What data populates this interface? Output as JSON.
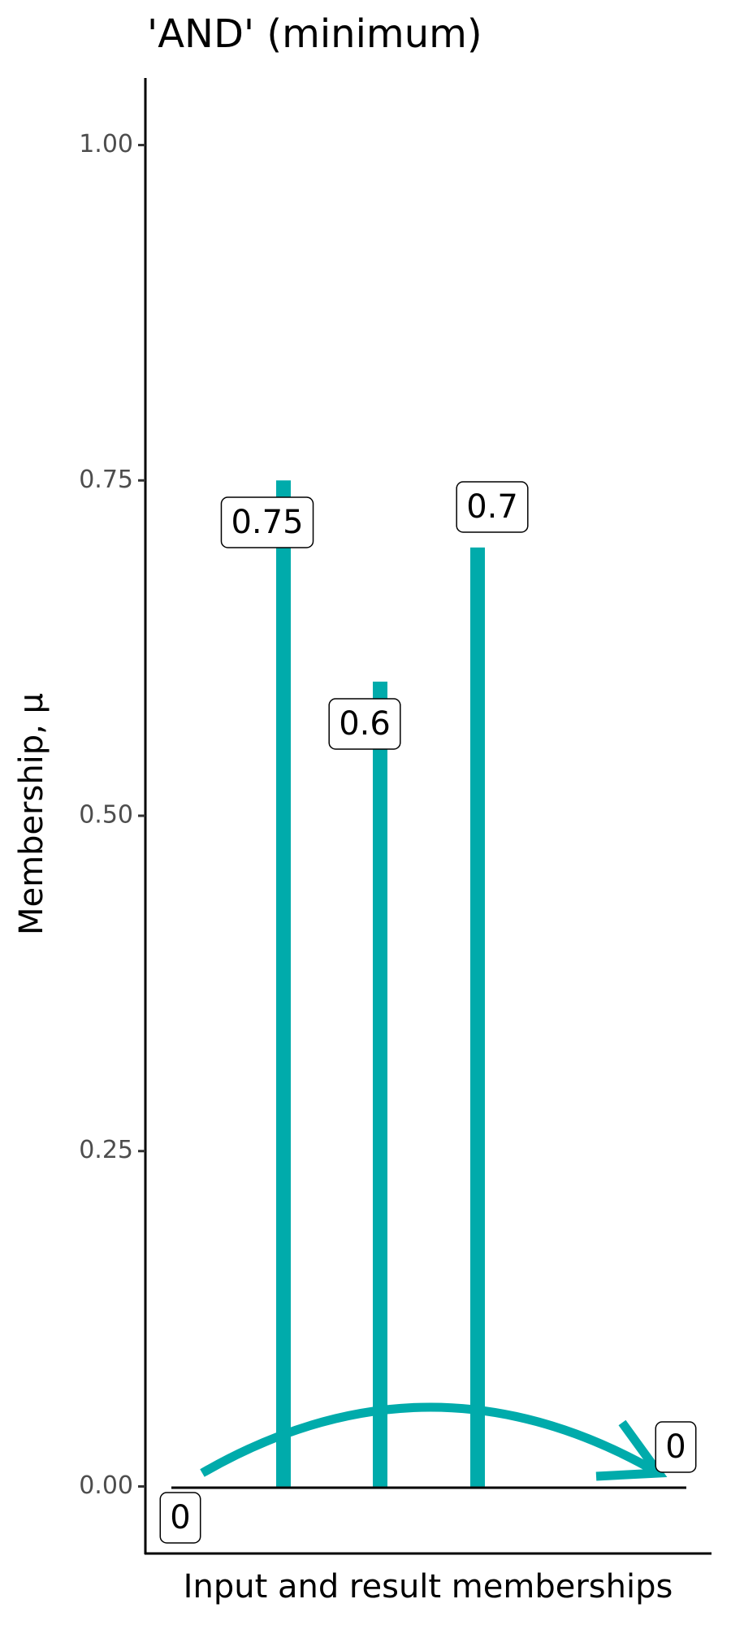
{
  "chart_data": {
    "type": "bar",
    "title": "'AND' (minimum)",
    "x_label": "Input and result memberships",
    "y_label": "Membership, μ",
    "values": [
      0,
      0.75,
      0.6,
      0.7,
      0
    ],
    "color": "#00abab",
    "ylim": [
      -0.05,
      1.05
    ],
    "yticks": [
      {
        "value": 0,
        "label": "0.00"
      },
      {
        "value": 0.25,
        "label": "0.25"
      },
      {
        "value": 0.5,
        "label": "0.50"
      },
      {
        "value": 0.75,
        "label": "0.75"
      },
      {
        "value": 1,
        "label": "1.00"
      }
    ]
  }
}
